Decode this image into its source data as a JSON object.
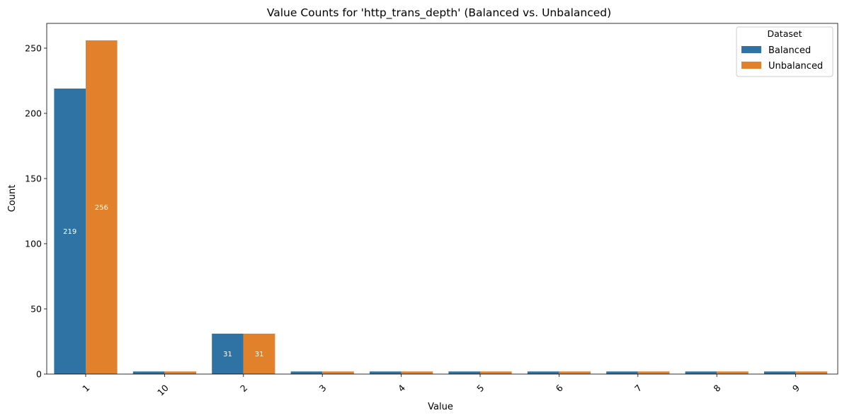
{
  "chart_data": {
    "type": "bar",
    "title": "Value Counts for 'http_trans_depth' (Balanced vs. Unbalanced)",
    "xlabel": "Value",
    "ylabel": "Count",
    "categories": [
      "1",
      "10",
      "2",
      "3",
      "4",
      "5",
      "6",
      "7",
      "8",
      "9"
    ],
    "series": [
      {
        "name": "Balanced",
        "color": "#2e73a3",
        "values": [
          219,
          2,
          31,
          2,
          2,
          2,
          2,
          2,
          2,
          2
        ]
      },
      {
        "name": "Unbalanced",
        "color": "#e1812c",
        "values": [
          256,
          2,
          31,
          2,
          2,
          2,
          2,
          2,
          2,
          2
        ]
      }
    ],
    "data_labels": [
      {
        "category": "1",
        "series": "Balanced",
        "text": "219"
      },
      {
        "category": "1",
        "series": "Unbalanced",
        "text": "256"
      },
      {
        "category": "2",
        "series": "Balanced",
        "text": "31"
      },
      {
        "category": "2",
        "series": "Unbalanced",
        "text": "31"
      }
    ],
    "ylim": [
      0,
      269
    ],
    "yticks": [
      0,
      50,
      100,
      150,
      200,
      250
    ],
    "xtick_rotation": -45,
    "grid": false,
    "legend": {
      "title": "Dataset",
      "placement": "top-right"
    }
  }
}
